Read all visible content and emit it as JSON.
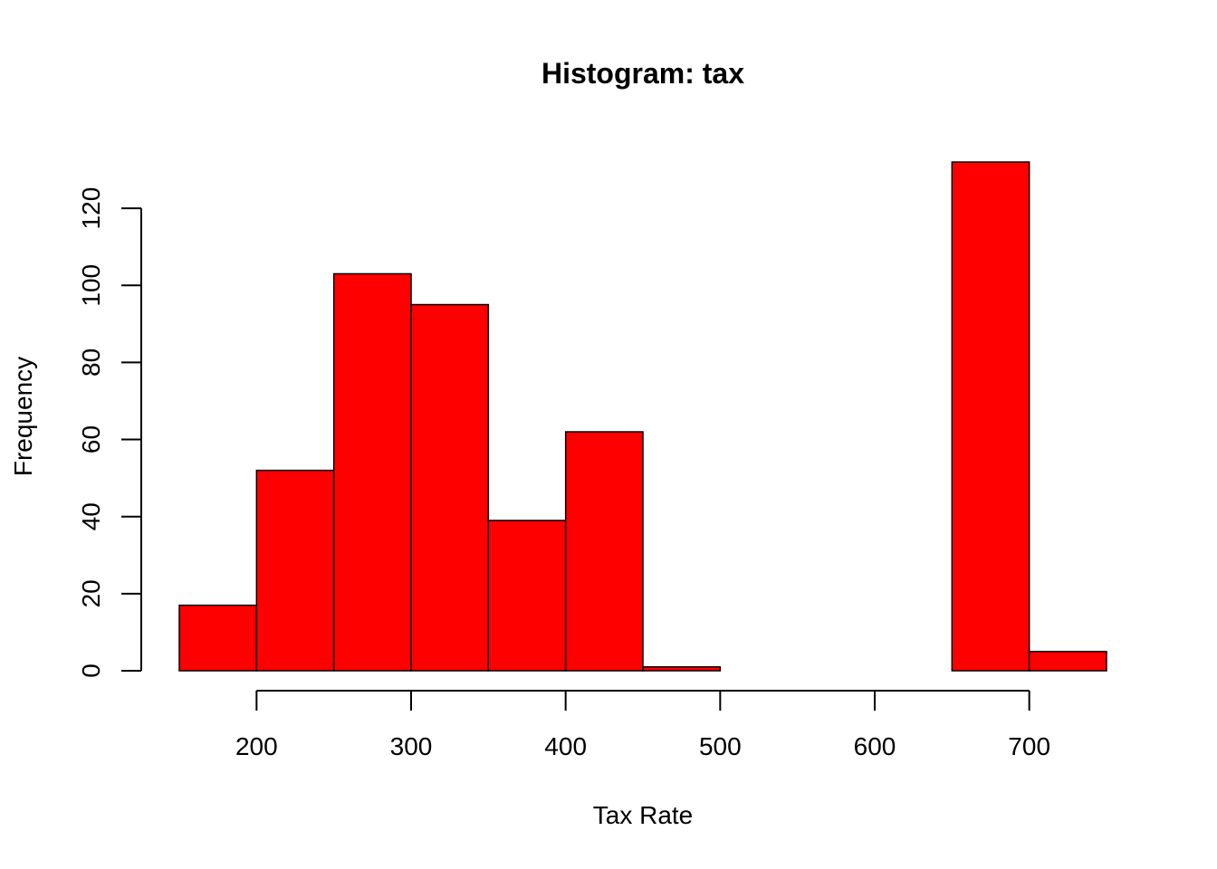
{
  "chart_data": {
    "type": "bar",
    "title": "Histogram: tax",
    "xlabel": "Tax Rate",
    "ylabel": "Frequency",
    "bin_edges": [
      150,
      200,
      250,
      300,
      350,
      400,
      450,
      500,
      550,
      600,
      650,
      700,
      750
    ],
    "values": [
      17,
      52,
      103,
      95,
      39,
      62,
      1,
      0,
      0,
      0,
      132,
      5
    ],
    "xlim": [
      150,
      750
    ],
    "ylim": [
      0,
      132
    ],
    "x_ticks": [
      200,
      300,
      400,
      500,
      600,
      700
    ],
    "y_ticks": [
      0,
      20,
      40,
      60,
      80,
      100,
      120
    ],
    "bar_color": "#ff0000",
    "border_color": "#000000",
    "grid": false,
    "legend": "none"
  }
}
